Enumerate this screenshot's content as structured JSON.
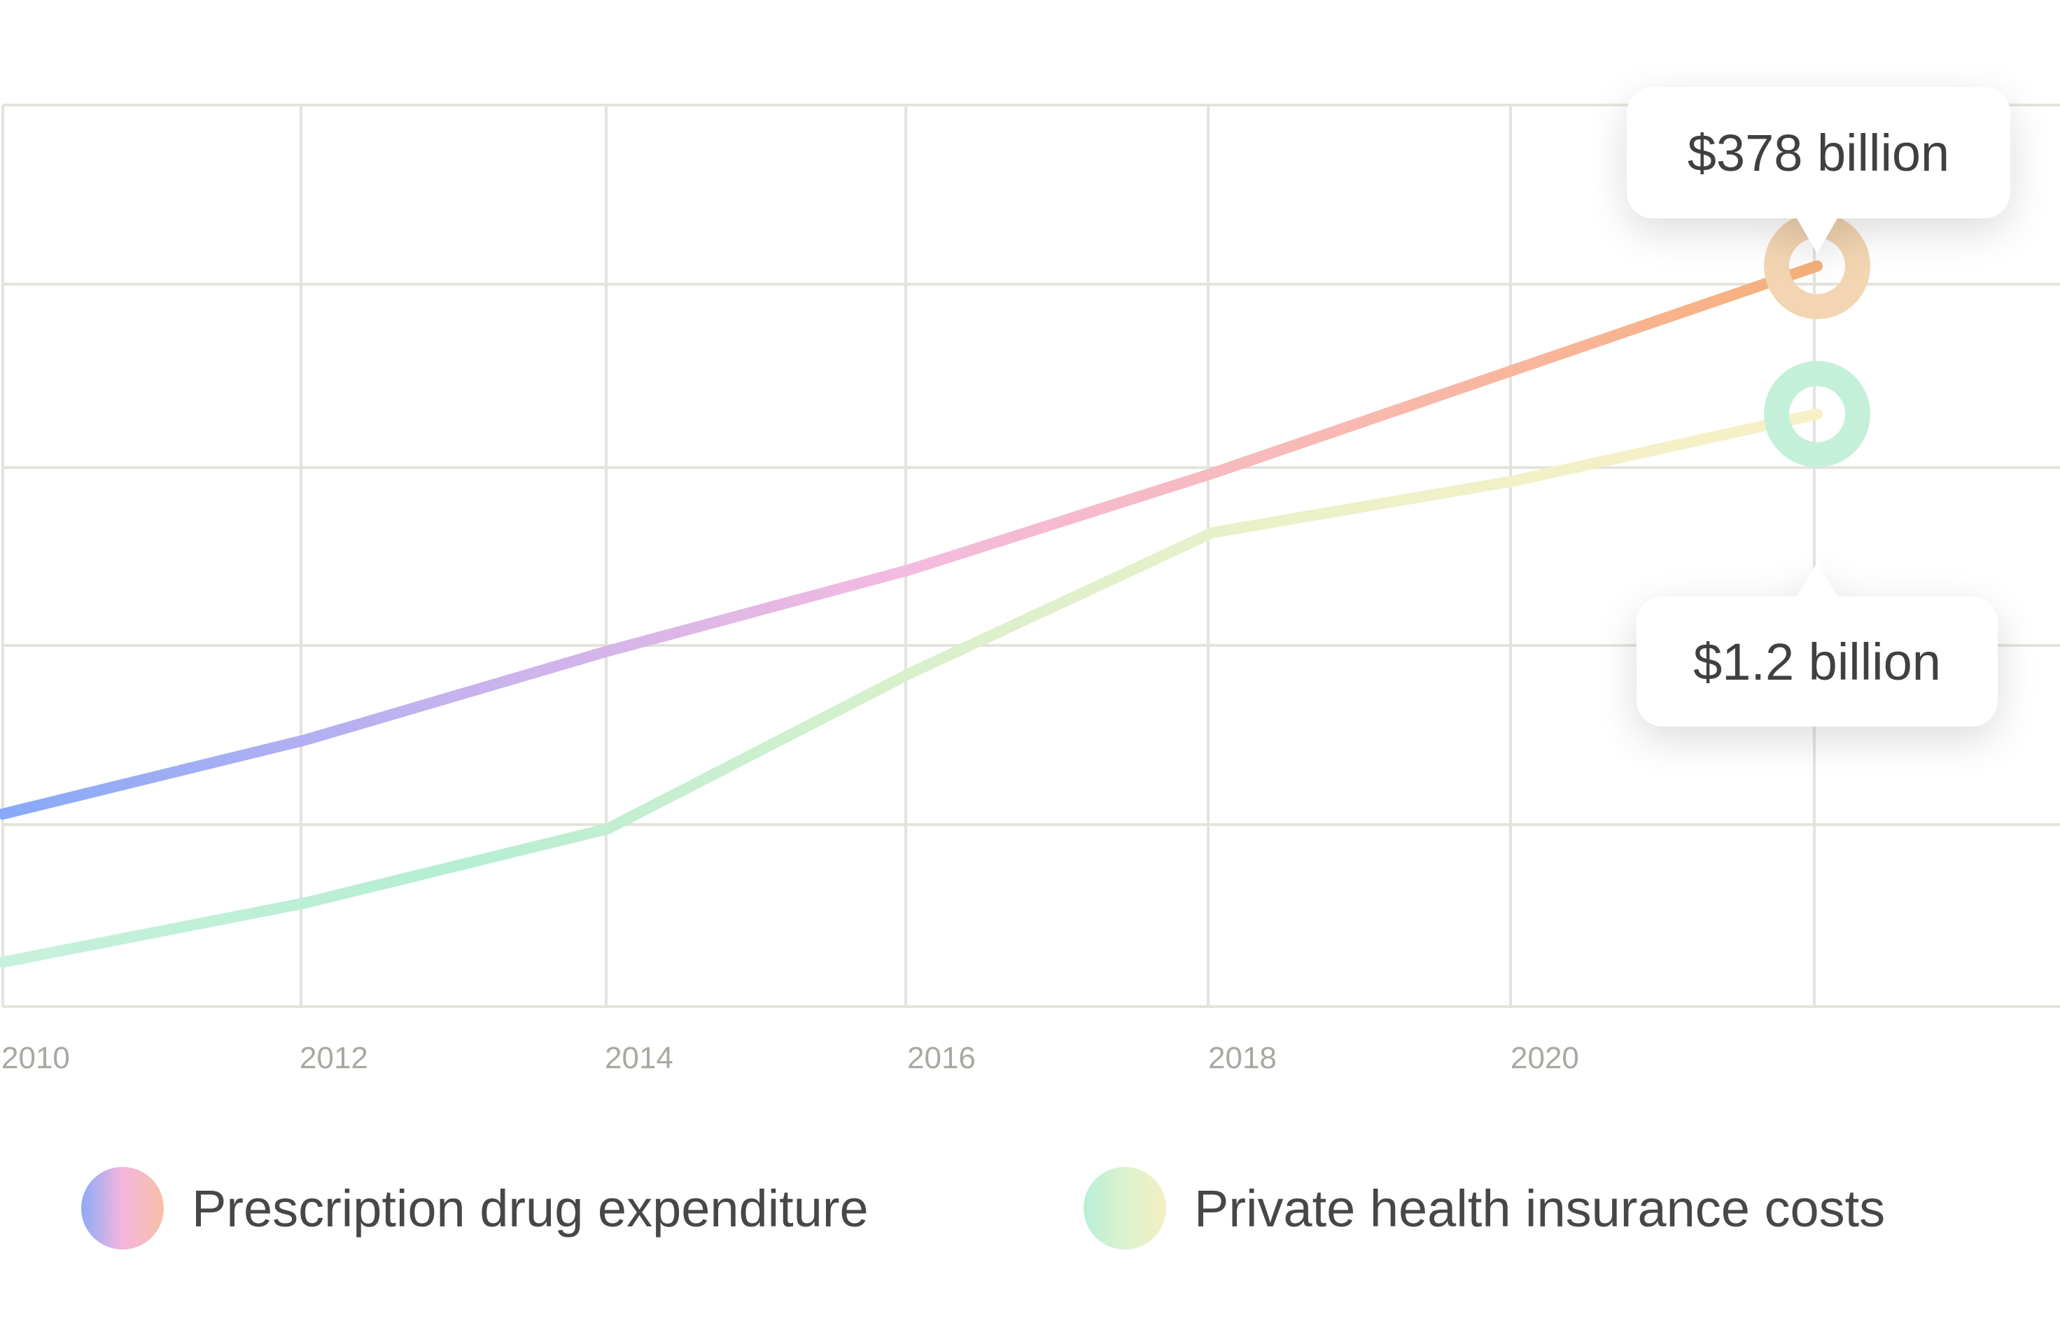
{
  "chart_data": {
    "type": "line",
    "title": "",
    "xlabel": "",
    "ylabel": "",
    "x_ticks": [
      "2010",
      "2012",
      "2014",
      "2016",
      "2018",
      "2020"
    ],
    "grid": true,
    "legend_placement": "bottom",
    "series": [
      {
        "name": "Prescription drug expenditure",
        "gradient": [
          "#86aaf8",
          "#c6b2ee",
          "#f3bbe0",
          "#f9b9b0",
          "#f6b07a"
        ],
        "points": [
          [
            2010,
            0.26
          ],
          [
            2012,
            0.36
          ],
          [
            2014,
            0.48
          ],
          [
            2016,
            0.59
          ],
          [
            2018,
            0.72
          ],
          [
            2020,
            0.86
          ],
          [
            2022,
            1.0
          ]
        ],
        "end_label": "$378 billion"
      },
      {
        "name": "Private health insurance costs",
        "gradient": [
          "#c8f1dd",
          "#b5eed3",
          "#d8f0cc",
          "#eef1c8",
          "#f8f0c6"
        ],
        "points": [
          [
            2010,
            0.06
          ],
          [
            2012,
            0.14
          ],
          [
            2014,
            0.24
          ],
          [
            2016,
            0.45
          ],
          [
            2018,
            0.64
          ],
          [
            2020,
            0.71
          ],
          [
            2022,
            0.8
          ]
        ],
        "end_label": "$1.2 billion"
      }
    ]
  },
  "legend": {
    "items": [
      {
        "label": "Prescription drug expenditure",
        "colors": [
          "#8eaaf7",
          "#f3b6dc",
          "#f8bfa6"
        ]
      },
      {
        "label": "Private health insurance costs",
        "colors": [
          "#b9efd6",
          "#dbf2cf",
          "#f5efc2"
        ]
      }
    ]
  },
  "colors": {
    "grid": "#e4e3dc",
    "tick_text": "#a9a8a1",
    "callout_text": "#3f3f3f",
    "marker_orange": "#f3d5b2",
    "marker_green": "#c4f0da"
  }
}
